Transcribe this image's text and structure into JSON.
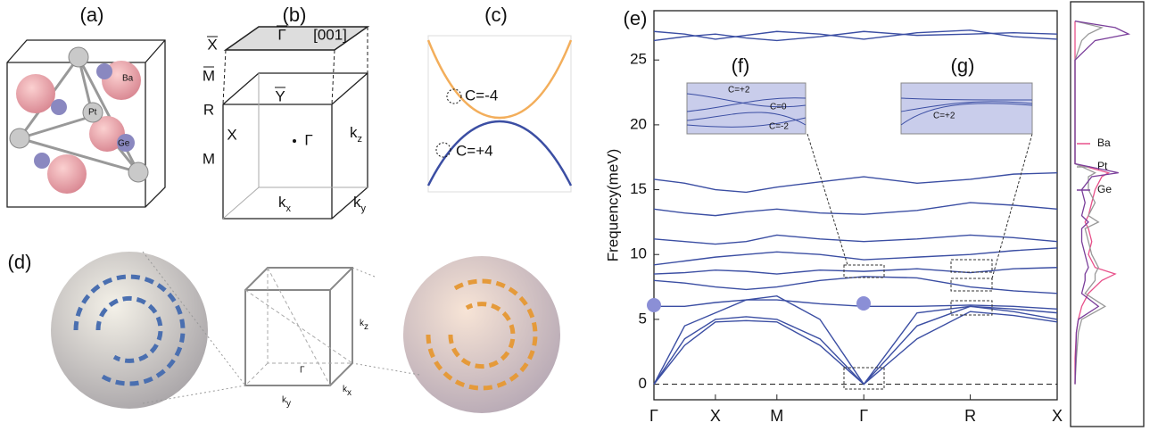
{
  "panel_labels": [
    "(a)",
    "(b)",
    "(c)",
    "(d)",
    "(e)",
    "(f)",
    "(g)"
  ],
  "panel_a": {
    "atoms": [
      "Ba",
      "Pt",
      "Ge"
    ]
  },
  "panel_b": {
    "labels": [
      "X",
      "M",
      "R",
      "M",
      "X",
      "Γ",
      "[001]",
      "Y",
      "Γ"
    ],
    "axes": [
      {
        "main": "k",
        "sub": "z"
      },
      {
        "main": "k",
        "sub": "x"
      },
      {
        "main": "k",
        "sub": "y"
      }
    ]
  },
  "panel_c": {
    "charges": [
      "C=-4",
      "C=+4"
    ]
  },
  "panel_d": {
    "point": "Γ",
    "axes": [
      {
        "main": "k",
        "sub": "z"
      },
      {
        "main": "k",
        "sub": "x"
      },
      {
        "main": "k",
        "sub": "y"
      }
    ]
  },
  "insets": {
    "f": [
      "C=+2",
      "C=0",
      "C=-2"
    ],
    "g": [
      "C=+2"
    ]
  },
  "chart_data": [
    {
      "type": "line",
      "y_label": "Frequency(meV)",
      "color": "#3b4ea3",
      "x": [
        0,
        0.5,
        1,
        1.5,
        2,
        2.7,
        3.414,
        4.28,
        5.146,
        5.85,
        6.56
      ],
      "xlim": [
        0,
        6.56
      ],
      "xticks": [
        {
          "value": 0,
          "label": "Γ"
        },
        {
          "value": 1,
          "label": "X"
        },
        {
          "value": 2,
          "label": "M"
        },
        {
          "value": 3.414,
          "label": "Γ"
        },
        {
          "value": 5.146,
          "label": "R"
        },
        {
          "value": 6.56,
          "label": "X"
        }
      ],
      "ylim": [
        -1.2,
        28.8
      ],
      "yticks": [
        0,
        5,
        10,
        15,
        20,
        25
      ],
      "series": [
        {
          "values": [
            0,
            3.0,
            4.8,
            4.9,
            4.8,
            3.0,
            0,
            3.5,
            5.6,
            5.3,
            4.8
          ]
        },
        {
          "values": [
            0,
            3.5,
            5.0,
            5.2,
            5.0,
            3.5,
            0,
            4.5,
            6.0,
            5.6,
            5.0
          ]
        },
        {
          "values": [
            0,
            4.5,
            5.5,
            6.5,
            6.8,
            5.0,
            0,
            5.5,
            6.0,
            5.8,
            5.5
          ]
        },
        {
          "values": [
            6.0,
            6.0,
            6.3,
            6.5,
            6.5,
            6.2,
            6.0,
            6.0,
            6.1,
            6.0,
            5.8
          ]
        },
        {
          "values": [
            8.0,
            7.8,
            7.5,
            7.3,
            7.5,
            8.0,
            8.3,
            8.2,
            7.5,
            7.2,
            7.0
          ]
        },
        {
          "values": [
            8.5,
            8.6,
            8.8,
            8.7,
            8.5,
            8.8,
            8.7,
            8.9,
            8.6,
            8.9,
            9.0
          ]
        },
        {
          "values": [
            9.2,
            9.5,
            9.8,
            10,
            10.2,
            10,
            9.6,
            9.8,
            10,
            10.3,
            10.5
          ]
        },
        {
          "values": [
            11.2,
            11,
            10.8,
            11,
            11.5,
            11.2,
            11,
            11.2,
            11.5,
            11.3,
            11
          ]
        },
        {
          "values": [
            13.5,
            13.2,
            13,
            13.3,
            13.5,
            13.2,
            13.1,
            13.4,
            14,
            13.8,
            13.5
          ]
        },
        {
          "values": [
            15.8,
            15.5,
            15,
            14.8,
            15.2,
            15.6,
            16,
            15.5,
            15.8,
            16.2,
            16.3
          ]
        },
        {
          "values": [
            26.5,
            26.8,
            27,
            26.7,
            26.5,
            26.8,
            27.2,
            26.9,
            27.0,
            27.1,
            27.0
          ]
        },
        {
          "values": [
            27.2,
            27,
            26.6,
            26.9,
            27.2,
            27,
            26.6,
            27.1,
            27.3,
            26.8,
            26.6
          ]
        }
      ]
    },
    {
      "type": "line",
      "orientation": "vertical",
      "x": [
        0,
        2,
        4,
        5,
        6,
        7,
        8,
        8.5,
        9,
        10,
        11,
        12,
        12.5,
        13,
        14,
        15,
        16,
        16.3,
        17,
        20,
        25,
        26.5,
        27,
        27.5,
        28
      ],
      "xlim": [
        -1.2,
        28.8
      ],
      "ylim": [
        0,
        1
      ],
      "series": [
        {
          "name": "Ba",
          "color": "#e8508a",
          "values": [
            0,
            0,
            0.02,
            0.05,
            0.1,
            0.2,
            0.4,
            0.6,
            0.3,
            0.2,
            0.25,
            0.2,
            0.15,
            0.2,
            0.25,
            0.3,
            0.4,
            0.5,
            0,
            0,
            0,
            0,
            0,
            0,
            0
          ]
        },
        {
          "name": "Pt",
          "color": "#999999",
          "values": [
            0,
            0.02,
            0.05,
            0.1,
            0.45,
            0.15,
            0.3,
            0.3,
            0.35,
            0.25,
            0.2,
            0.15,
            0.35,
            0.2,
            0.3,
            0.2,
            0.2,
            0.3,
            0,
            0,
            0,
            0.1,
            0.2,
            0.4,
            0
          ]
        },
        {
          "name": "Ge",
          "color": "#7a3e9a",
          "values": [
            0,
            0.01,
            0.02,
            0.05,
            0.35,
            0.1,
            0.15,
            0.15,
            0.2,
            0.15,
            0.1,
            0.1,
            0.2,
            0.1,
            0.15,
            0.1,
            0.25,
            0.65,
            0,
            0,
            0,
            0.3,
            0.8,
            0.6,
            0
          ]
        }
      ]
    }
  ]
}
